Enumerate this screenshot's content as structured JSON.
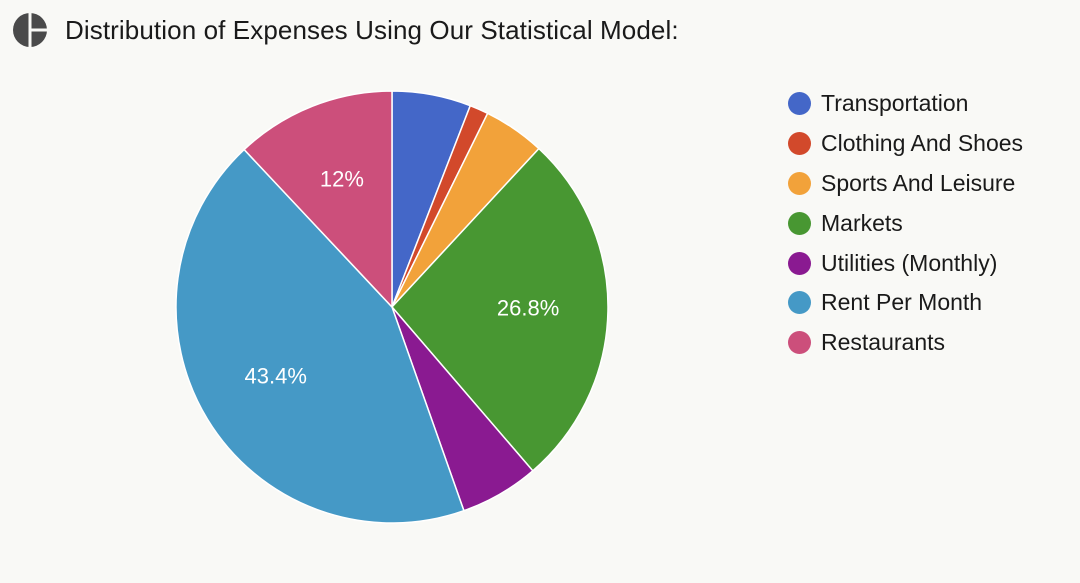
{
  "header": {
    "title": "Distribution of Expenses Using Our Statistical Model:",
    "icon": "pie-chart-icon"
  },
  "chart_data": {
    "type": "pie",
    "title": "Distribution of Expenses Using Our Statistical Model:",
    "legend_position": "right",
    "slices": [
      {
        "name": "Transportation",
        "value": 5.9,
        "color": "#4467c8",
        "label": ""
      },
      {
        "name": "Clothing And Shoes",
        "value": 1.4,
        "color": "#d2492b",
        "label": ""
      },
      {
        "name": "Sports And Leisure",
        "value": 4.6,
        "color": "#f2a23a",
        "label": ""
      },
      {
        "name": "Markets",
        "value": 26.8,
        "color": "#489732",
        "label": "26.8%"
      },
      {
        "name": "Utilities (Monthly)",
        "value": 5.9,
        "color": "#8a1a91",
        "label": ""
      },
      {
        "name": "Rent Per Month",
        "value": 43.4,
        "color": "#4599c6",
        "label": "43.4%"
      },
      {
        "name": "Restaurants",
        "value": 12.0,
        "color": "#cc4f7b",
        "label": "12%"
      }
    ]
  }
}
